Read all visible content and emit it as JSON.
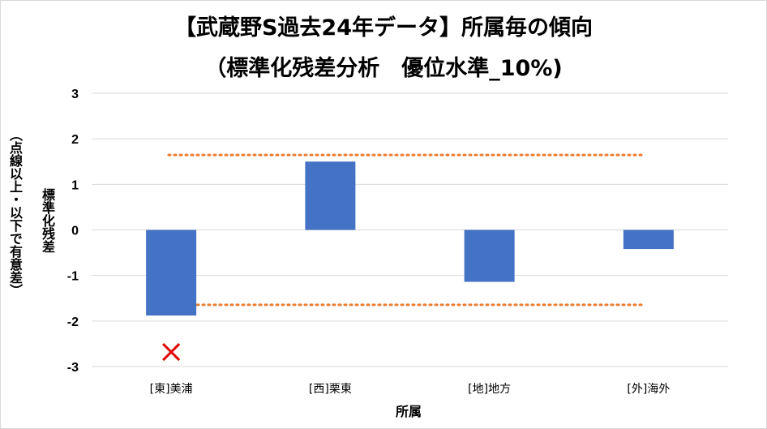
{
  "chart_data": {
    "type": "bar",
    "title": "【武蔵野S過去24年データ】所属毎の傾向",
    "subtitle": "（標準化残差分析　優位水準_10%)",
    "xlabel": "所属",
    "ylabel_line1": "標準化残差",
    "ylabel_line2": "（点線以上・以下で有意差）",
    "categories": [
      "[東]美浦",
      "[西]栗東",
      "[地]地方",
      "[外]海外"
    ],
    "values": [
      -1.88,
      1.5,
      -1.14,
      -0.42
    ],
    "ylim": [
      -3,
      3
    ],
    "yticks": [
      3,
      2,
      1,
      0,
      -1,
      -2,
      -3
    ],
    "thresholds": [
      1.645,
      -1.645
    ],
    "markers": [
      {
        "category": "[東]美浦",
        "y": -2.68,
        "symbol": "x"
      }
    ],
    "grid": true,
    "colors": {
      "bar": "#4472c4",
      "threshold": "#ed7d31",
      "marker": "#e00000",
      "grid": "#d9d9d9"
    }
  }
}
